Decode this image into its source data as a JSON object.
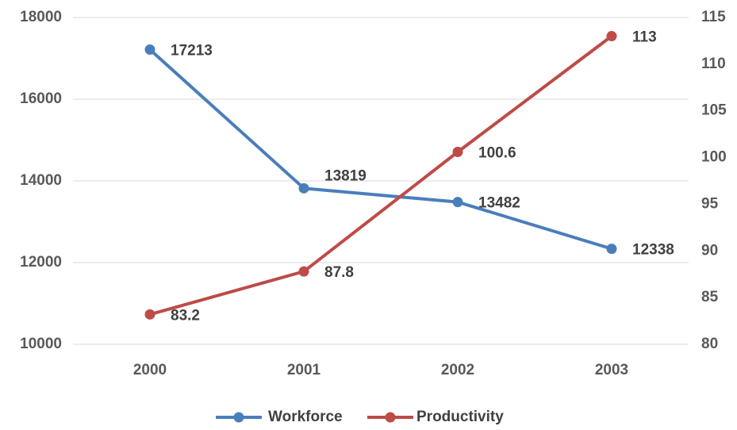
{
  "chart_data": {
    "type": "line",
    "categories": [
      "2000",
      "2001",
      "2002",
      "2003"
    ],
    "series": [
      {
        "name": "Workforce",
        "color": "#4a7ebb",
        "values": [
          17213,
          13819,
          13482,
          12338
        ]
      },
      {
        "name": "Productivity",
        "color": "#be4b48",
        "axis": "y2",
        "values": [
          83.2,
          87.8,
          100.6,
          113
        ]
      }
    ],
    "ylim": [
      10000,
      18000
    ],
    "yticks": [
      10000,
      12000,
      14000,
      16000,
      18000
    ],
    "y2lim": [
      80,
      115
    ],
    "y2ticks": [
      80,
      85,
      90,
      95,
      100,
      105,
      110,
      115
    ],
    "grid": true,
    "legend": "bottom"
  }
}
